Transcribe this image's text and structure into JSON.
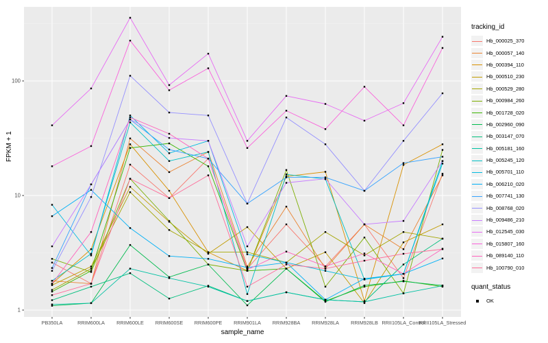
{
  "window": {
    "background": "#FFFFFF"
  },
  "panel": {
    "background": "#EBEBEB",
    "grid_major_color": "#FFFFFF",
    "grid_minor_color": "#F7F7F7",
    "tick_color": "#333333",
    "tick_label_color": "#4D4D4D",
    "point_color": "#000000"
  },
  "legend": {
    "tracking_title": "tracking_id",
    "quant_title": "quant_status",
    "quant_items": [
      {
        "label": "OK",
        "marker": "black-square"
      }
    ]
  },
  "chart_data": {
    "type": "line",
    "title": "",
    "xlabel": "sample_name",
    "ylabel": "FPKM + 1",
    "y_scale": "log10",
    "y_ticks": [
      1,
      10,
      100
    ],
    "y_minor_ticks": [
      3.162,
      31.62,
      316.2
    ],
    "ylim": [
      1,
      443
    ],
    "grid": true,
    "legend_position": "right",
    "point_marker": "black-square",
    "quant_status": "OK",
    "categories": [
      "PB350LA",
      "RRIM600LA",
      "RRIM600LE",
      "RRIM600SE",
      "RRIM600PE",
      "RRIM901LA",
      "RRIM928BA",
      "RRIM928LA",
      "RRIM928LB",
      "RRII105LA_Control",
      "RRII105LA_Stressed"
    ],
    "series": [
      {
        "name": "Hb_000025_370",
        "color": "#F8766D",
        "values": [
          2.6,
          1.7,
          18.6,
          9.5,
          21,
          2.3,
          5.6,
          2.4,
          5.6,
          1.9,
          15.5
        ]
      },
      {
        "name": "Hb_000057_140",
        "color": "#EA8331",
        "values": [
          1.8,
          1.7,
          31.5,
          16,
          24,
          2.4,
          8.0,
          2.3,
          5.6,
          3.4,
          15
        ]
      },
      {
        "name": "Hb_000394_110",
        "color": "#D89000",
        "values": [
          1.7,
          3.4,
          28,
          11,
          3.2,
          2.2,
          14.7,
          16.1,
          1.2,
          18.5,
          28
        ]
      },
      {
        "name": "Hb_000510_230",
        "color": "#C09B00",
        "values": [
          1.65,
          2.4,
          11.9,
          5.9,
          3.1,
          5.3,
          2.3,
          3.2,
          1.15,
          3.9,
          5.6
        ]
      },
      {
        "name": "Hb_000529_280",
        "color": "#A3A500",
        "values": [
          1.5,
          2.3,
          10.7,
          5.0,
          3.2,
          3.2,
          2.6,
          4.8,
          3.0,
          4.8,
          4.2
        ]
      },
      {
        "name": "Hb_000984_260",
        "color": "#7CAE00",
        "values": [
          2.8,
          2.15,
          14,
          6.0,
          2.5,
          2.2,
          16.7,
          1.6,
          4.3,
          1.4,
          25
        ]
      },
      {
        "name": "Hb_001728_020",
        "color": "#39B600",
        "values": [
          1.45,
          2.2,
          26,
          28.5,
          18,
          2.2,
          2.3,
          1.2,
          1.6,
          1.8,
          1.6
        ]
      },
      {
        "name": "Hb_002960_090",
        "color": "#00BB4E",
        "values": [
          1.09,
          1.15,
          3.7,
          1.94,
          2.5,
          1.1,
          2.3,
          1.18,
          1.64,
          1.78,
          1.64
        ]
      },
      {
        "name": "Hb_003147_070",
        "color": "#00BF7D",
        "values": [
          1.22,
          1.6,
          2.1,
          1.26,
          1.63,
          1.2,
          1.43,
          1.23,
          1.18,
          2.5,
          4.2
        ]
      },
      {
        "name": "Hb_005181_160",
        "color": "#00C1A3",
        "values": [
          1.12,
          1.15,
          2.3,
          1.9,
          1.6,
          1.2,
          1.43,
          1.23,
          1.18,
          1.4,
          1.63
        ]
      },
      {
        "name": "Hb_005245_120",
        "color": "#00BFC4",
        "values": [
          1.8,
          3.1,
          43.5,
          20,
          24,
          1.38,
          15.3,
          13.9,
          1.85,
          2.07,
          20
        ]
      },
      {
        "name": "Hb_005701_110",
        "color": "#00BAE0",
        "values": [
          8.3,
          3.0,
          50,
          23.4,
          30,
          3.07,
          2.6,
          2.2,
          1.85,
          2.07,
          19
        ]
      },
      {
        "name": "Hb_006210_020",
        "color": "#00B0F6",
        "values": [
          6.6,
          11.2,
          5.2,
          2.96,
          2.8,
          2.35,
          2.6,
          1.23,
          1.88,
          2.07,
          2.82
        ]
      },
      {
        "name": "Hb_007741_130",
        "color": "#35A2FF",
        "values": [
          2.33,
          12.5,
          46,
          25.2,
          21,
          8.5,
          14.4,
          14.4,
          11,
          19.2,
          21.8
        ]
      },
      {
        "name": "Hb_008768_020",
        "color": "#9590FF",
        "values": [
          2.2,
          9.7,
          111,
          53,
          50,
          8.5,
          48,
          28,
          11,
          30,
          78
        ]
      },
      {
        "name": "Hb_009486_210",
        "color": "#C77CFF",
        "values": [
          3.6,
          12.5,
          46,
          31.8,
          30,
          3.6,
          12.9,
          14,
          5.6,
          6.0,
          20
        ]
      },
      {
        "name": "Hb_012545_030",
        "color": "#E76BF3",
        "values": [
          41,
          86,
          356,
          92,
          173,
          30,
          74,
          63,
          45,
          64,
          243
        ]
      },
      {
        "name": "Hb_015807_160",
        "color": "#FA62DB",
        "values": [
          18,
          27,
          225,
          83,
          129,
          26,
          55,
          38,
          89,
          41,
          194
        ]
      },
      {
        "name": "Hb_089140_110",
        "color": "#FF62BC",
        "values": [
          1.7,
          4.8,
          48,
          34.6,
          21,
          2.25,
          3.24,
          2.41,
          3.12,
          2.07,
          3.43
        ]
      },
      {
        "name": "Hb_100790_010",
        "color": "#FF6A98",
        "values": [
          1.35,
          1.7,
          14,
          9.5,
          15,
          1.6,
          2.5,
          2.3,
          2.7,
          3.1,
          3.4
        ]
      }
    ]
  }
}
